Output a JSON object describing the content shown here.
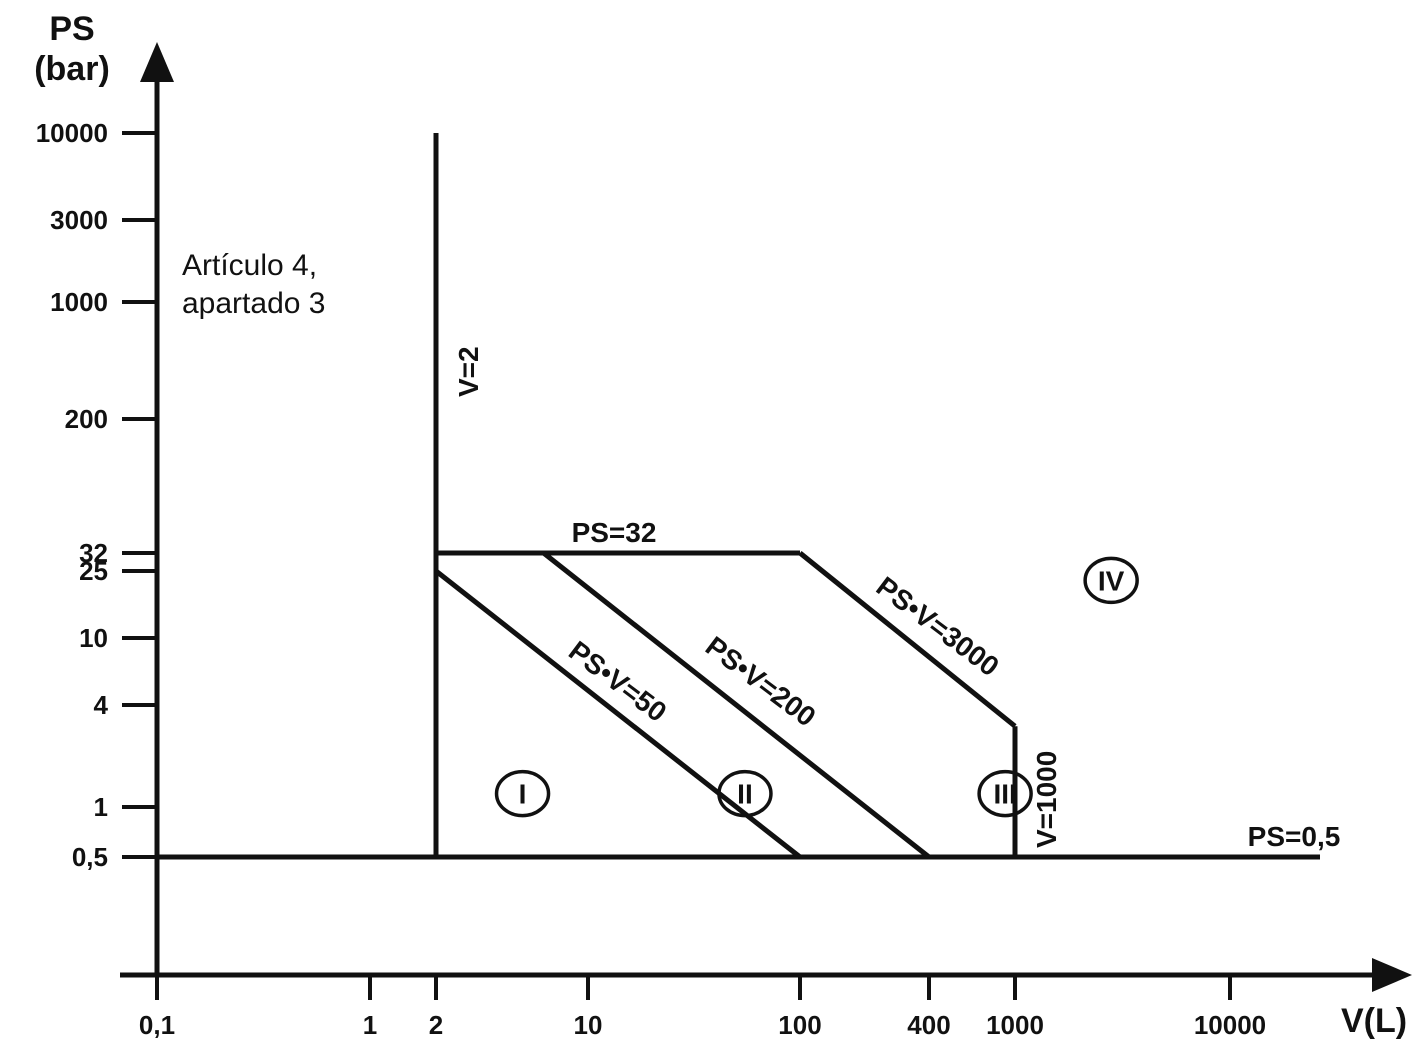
{
  "chart_data": {
    "type": "line",
    "scale": {
      "x": "log",
      "y": "log"
    },
    "xlabel": "V(L)",
    "ylabel_line1": "PS",
    "ylabel_line2": "(bar)",
    "xticks": [
      {
        "v": 0.1,
        "label": "0,1"
      },
      {
        "v": 1,
        "label": "1"
      },
      {
        "v": 2,
        "label": "2"
      },
      {
        "v": 10,
        "label": "10"
      },
      {
        "v": 100,
        "label": "100"
      },
      {
        "v": 400,
        "label": "400"
      },
      {
        "v": 1000,
        "label": "1000"
      },
      {
        "v": 10000,
        "label": "10000"
      }
    ],
    "yticks": [
      {
        "v": 0.5,
        "label": "0,5"
      },
      {
        "v": 1,
        "label": "1"
      },
      {
        "v": 4,
        "label": "4"
      },
      {
        "v": 10,
        "label": "10"
      },
      {
        "v": 25,
        "label": "25"
      },
      {
        "v": 32,
        "label": "32"
      },
      {
        "v": 200,
        "label": "200"
      },
      {
        "v": 1000,
        "label": "1000"
      },
      {
        "v": 3000,
        "label": "3000"
      },
      {
        "v": 10000,
        "label": "10000"
      }
    ],
    "lines": [
      {
        "label": "V=2",
        "points": [
          [
            2,
            0.5
          ],
          [
            2,
            10000
          ]
        ]
      },
      {
        "label": "PS=0,5",
        "points": [
          [
            0.1,
            0.5
          ],
          [
            20000,
            0.5
          ]
        ]
      },
      {
        "label": "PS=32",
        "points": [
          [
            2,
            32
          ],
          [
            100,
            32
          ]
        ]
      },
      {
        "label": "PS•V=50",
        "points": [
          [
            2,
            25
          ],
          [
            100,
            0.5
          ]
        ]
      },
      {
        "label": "PS•V=200",
        "points": [
          [
            6.25,
            32
          ],
          [
            400,
            0.5
          ]
        ]
      },
      {
        "label": "PS•V=3000",
        "points": [
          [
            100,
            32
          ],
          [
            1000,
            3
          ]
        ]
      },
      {
        "label": "V=1000",
        "points": [
          [
            1000,
            3
          ],
          [
            1000,
            0.5
          ]
        ]
      }
    ],
    "regions": [
      {
        "label": "I",
        "v": 5,
        "ps": 1.2
      },
      {
        "label": "II",
        "v": 55,
        "ps": 1.2
      },
      {
        "label": "III",
        "v": 900,
        "ps": 1.2
      },
      {
        "label": "IV",
        "v": 2800,
        "ps": 22
      }
    ],
    "annotation_line1": "Artículo 4,",
    "annotation_line2": "apartado 3"
  }
}
